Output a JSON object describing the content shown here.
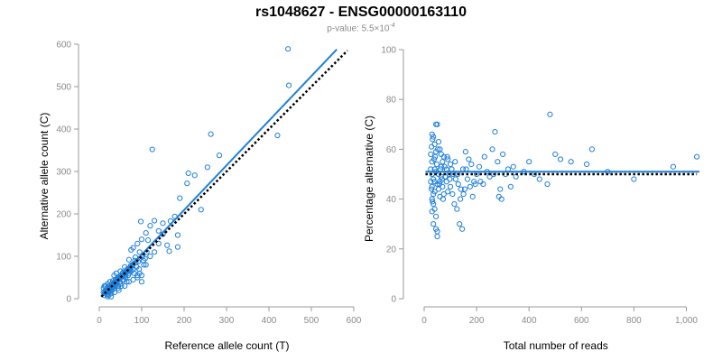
{
  "title": "rs1048627 - ENSG00000163110",
  "subtitle": {
    "prefix": "p-value: 5.5×10",
    "exponent": "-4"
  },
  "colors": {
    "points": "#1f7fd9",
    "fit_line": "#1f7fd9",
    "reference_line": "#000000",
    "axis": "#999999",
    "tick_text": "#8a8a8a"
  },
  "chart_data": [
    {
      "type": "scatter",
      "xlabel": "Reference allele count (T)",
      "ylabel": "Alternative allele count (C)",
      "xlim": [
        0,
        600
      ],
      "ylim": [
        0,
        600
      ],
      "xticks": [
        0,
        100,
        200,
        300,
        400,
        500,
        600
      ],
      "yticks": [
        0,
        100,
        200,
        300,
        400,
        500,
        600
      ],
      "xtick_labels": [
        "0",
        "100",
        "200",
        "300",
        "400",
        "500",
        "600"
      ],
      "ytick_labels": [
        "0",
        "100",
        "200",
        "300",
        "400",
        "500",
        "600"
      ],
      "grid": false,
      "points": [
        [
          445,
          589
        ],
        [
          447,
          503
        ],
        [
          125,
          352
        ],
        [
          263,
          388
        ],
        [
          420,
          385
        ],
        [
          210,
          296
        ],
        [
          225,
          291
        ],
        [
          207,
          272
        ],
        [
          255,
          310
        ],
        [
          240,
          210
        ],
        [
          283,
          338
        ],
        [
          190,
          237
        ],
        [
          178,
          194
        ],
        [
          168,
          183
        ],
        [
          150,
          152
        ],
        [
          185,
          150
        ],
        [
          160,
          126
        ],
        [
          165,
          112
        ],
        [
          185,
          122
        ],
        [
          98,
          182
        ],
        [
          110,
          155
        ],
        [
          120,
          172
        ],
        [
          130,
          184
        ],
        [
          140,
          160
        ],
        [
          100,
          140
        ],
        [
          115,
          138
        ],
        [
          90,
          130
        ],
        [
          150,
          178
        ],
        [
          75,
          115
        ],
        [
          85,
          98
        ],
        [
          95,
          110
        ],
        [
          70,
          92
        ],
        [
          80,
          120
        ],
        [
          105,
          80
        ],
        [
          95,
          60
        ],
        [
          100,
          40
        ],
        [
          90,
          50
        ],
        [
          80,
          70
        ],
        [
          70,
          60
        ],
        [
          60,
          75
        ],
        [
          60,
          55
        ],
        [
          55,
          45
        ],
        [
          50,
          65
        ],
        [
          45,
          50
        ],
        [
          40,
          40
        ],
        [
          35,
          55
        ],
        [
          30,
          35
        ],
        [
          25,
          30
        ],
        [
          20,
          25
        ],
        [
          15,
          20
        ],
        [
          10,
          15
        ],
        [
          12,
          30
        ],
        [
          18,
          10
        ],
        [
          22,
          15
        ],
        [
          28,
          22
        ],
        [
          32,
          28
        ],
        [
          38,
          30
        ],
        [
          42,
          35
        ],
        [
          48,
          40
        ],
        [
          52,
          30
        ],
        [
          58,
          45
        ],
        [
          62,
          50
        ],
        [
          65,
          40
        ],
        [
          68,
          55
        ],
        [
          72,
          68
        ],
        [
          78,
          80
        ],
        [
          82,
          60
        ],
        [
          88,
          75
        ],
        [
          92,
          88
        ],
        [
          96,
          95
        ],
        [
          102,
          100
        ],
        [
          108,
          95
        ],
        [
          112,
          110
        ],
        [
          30,
          20
        ],
        [
          25,
          40
        ],
        [
          35,
          25
        ],
        [
          40,
          60
        ],
        [
          45,
          30
        ],
        [
          50,
          35
        ],
        [
          55,
          60
        ],
        [
          15,
          30
        ],
        [
          20,
          35
        ],
        [
          10,
          25
        ],
        [
          12,
          8
        ],
        [
          14,
          18
        ],
        [
          16,
          12
        ],
        [
          18,
          22
        ],
        [
          22,
          28
        ],
        [
          26,
          18
        ],
        [
          28,
          12
        ],
        [
          32,
          42
        ],
        [
          36,
          34
        ],
        [
          44,
          45
        ],
        [
          46,
          20
        ],
        [
          54,
          52
        ],
        [
          64,
          62
        ],
        [
          74,
          78
        ],
        [
          84,
          90
        ],
        [
          94,
          70
        ],
        [
          104,
          90
        ],
        [
          60,
          30
        ],
        [
          70,
          40
        ],
        [
          80,
          45
        ],
        [
          90,
          55
        ],
        [
          100,
          55
        ],
        [
          110,
          80
        ],
        [
          120,
          100
        ],
        [
          130,
          110
        ],
        [
          140,
          130
        ],
        [
          22,
          8
        ],
        [
          24,
          20
        ],
        [
          26,
          26
        ],
        [
          30,
          30
        ],
        [
          34,
          38
        ],
        [
          38,
          44
        ],
        [
          42,
          48
        ],
        [
          48,
          52
        ],
        [
          56,
          62
        ],
        [
          66,
          70
        ],
        [
          76,
          65
        ],
        [
          86,
          85
        ],
        [
          20,
          5
        ],
        [
          28,
          5
        ],
        [
          36,
          15
        ],
        [
          44,
          25
        ],
        [
          13,
          14
        ],
        [
          17,
          17
        ],
        [
          19,
          19
        ],
        [
          21,
          21
        ],
        [
          23,
          23
        ],
        [
          27,
          27
        ],
        [
          29,
          29
        ],
        [
          31,
          31
        ],
        [
          33,
          33
        ],
        [
          37,
          37
        ],
        [
          39,
          39
        ],
        [
          41,
          41
        ],
        [
          43,
          43
        ],
        [
          47,
          47
        ],
        [
          49,
          49
        ],
        [
          51,
          51
        ],
        [
          53,
          53
        ],
        [
          57,
          57
        ],
        [
          59,
          59
        ],
        [
          61,
          61
        ],
        [
          63,
          63
        ],
        [
          67,
          67
        ],
        [
          69,
          69
        ],
        [
          71,
          71
        ],
        [
          73,
          73
        ],
        [
          77,
          77
        ],
        [
          79,
          79
        ]
      ],
      "series": [
        {
          "kind": "fit",
          "color": "#1f7fd9",
          "style": "solid",
          "x": [
            5,
            560
          ],
          "y": [
            4,
            588
          ]
        },
        {
          "kind": "reference",
          "color": "#000000",
          "style": "dotted",
          "x": [
            5,
            585
          ],
          "y": [
            5,
            585
          ]
        }
      ]
    },
    {
      "type": "scatter",
      "xlabel": "Total number of reads",
      "ylabel": "Percentage alternative (C)",
      "xlim": [
        0,
        1050
      ],
      "ylim": [
        0,
        100
      ],
      "xticks": [
        0,
        200,
        400,
        600,
        800,
        1000
      ],
      "yticks": [
        0,
        20,
        40,
        60,
        80,
        100
      ],
      "xtick_labels": [
        "0",
        "200",
        "400",
        "600",
        "800",
        "1,000"
      ],
      "ytick_labels": [
        "0",
        "20",
        "40",
        "60",
        "80",
        "100"
      ],
      "grid": false,
      "points": [
        [
          480,
          74
        ],
        [
          270,
          67
        ],
        [
          50,
          70
        ],
        [
          45,
          70
        ],
        [
          30,
          66
        ],
        [
          35,
          65
        ],
        [
          55,
          63
        ],
        [
          40,
          62
        ],
        [
          60,
          60
        ],
        [
          65,
          58
        ],
        [
          45,
          59
        ],
        [
          70,
          55
        ],
        [
          75,
          57
        ],
        [
          85,
          52
        ],
        [
          90,
          56
        ],
        [
          100,
          54
        ],
        [
          110,
          50
        ],
        [
          120,
          48
        ],
        [
          130,
          46
        ],
        [
          140,
          44
        ],
        [
          150,
          42
        ],
        [
          160,
          52
        ],
        [
          170,
          56
        ],
        [
          180,
          54
        ],
        [
          200,
          50
        ],
        [
          210,
          53
        ],
        [
          230,
          57
        ],
        [
          250,
          49
        ],
        [
          260,
          60
        ],
        [
          280,
          55
        ],
        [
          290,
          44
        ],
        [
          300,
          58
        ],
        [
          310,
          50
        ],
        [
          320,
          52
        ],
        [
          330,
          45
        ],
        [
          340,
          53
        ],
        [
          350,
          49
        ],
        [
          380,
          51
        ],
        [
          400,
          55
        ],
        [
          420,
          50
        ],
        [
          440,
          48
        ],
        [
          470,
          46
        ],
        [
          500,
          58
        ],
        [
          520,
          56
        ],
        [
          560,
          55
        ],
        [
          620,
          54
        ],
        [
          640,
          60
        ],
        [
          700,
          51
        ],
        [
          800,
          48
        ],
        [
          950,
          53
        ],
        [
          1040,
          57
        ],
        [
          30,
          55
        ],
        [
          30,
          50
        ],
        [
          30,
          45
        ],
        [
          30,
          40
        ],
        [
          30,
          35
        ],
        [
          35,
          48
        ],
        [
          35,
          42
        ],
        [
          35,
          38
        ],
        [
          35,
          30
        ],
        [
          40,
          52
        ],
        [
          40,
          47
        ],
        [
          40,
          43
        ],
        [
          40,
          36
        ],
        [
          45,
          28
        ],
        [
          45,
          33
        ],
        [
          45,
          51
        ],
        [
          50,
          25
        ],
        [
          50,
          27
        ],
        [
          50,
          46
        ],
        [
          55,
          44
        ],
        [
          55,
          50
        ],
        [
          60,
          41
        ],
        [
          60,
          47
        ],
        [
          65,
          49
        ],
        [
          65,
          53
        ],
        [
          70,
          45
        ],
        [
          75,
          42
        ],
        [
          80,
          49
        ],
        [
          85,
          47
        ],
        [
          90,
          43
        ],
        [
          95,
          50
        ],
        [
          100,
          45
        ],
        [
          105,
          52
        ],
        [
          115,
          38
        ],
        [
          125,
          36
        ],
        [
          135,
          30
        ],
        [
          145,
          28
        ],
        [
          155,
          44
        ],
        [
          165,
          48
        ],
        [
          175,
          45
        ],
        [
          185,
          41
        ],
        [
          190,
          47
        ],
        [
          195,
          46
        ],
        [
          215,
          47
        ],
        [
          225,
          46
        ],
        [
          240,
          51
        ],
        [
          265,
          50
        ],
        [
          285,
          41
        ],
        [
          295,
          40
        ],
        [
          25,
          52
        ],
        [
          25,
          58
        ],
        [
          25,
          47
        ],
        [
          28,
          61
        ],
        [
          28,
          44
        ],
        [
          32,
          64
        ],
        [
          32,
          39
        ],
        [
          38,
          56
        ],
        [
          42,
          57
        ],
        [
          48,
          54
        ],
        [
          52,
          60
        ],
        [
          58,
          46
        ],
        [
          62,
          52
        ],
        [
          68,
          48
        ],
        [
          72,
          40
        ],
        [
          78,
          53
        ],
        [
          88,
          57
        ],
        [
          98,
          48
        ],
        [
          108,
          42
        ],
        [
          118,
          55
        ],
        [
          128,
          50
        ],
        [
          138,
          40
        ],
        [
          148,
          52
        ],
        [
          158,
          59
        ]
      ],
      "series": [
        {
          "kind": "fit",
          "color": "#1f7fd9",
          "style": "solid",
          "x": [
            5,
            1050
          ],
          "y": [
            51,
            51
          ]
        },
        {
          "kind": "reference",
          "color": "#000000",
          "style": "dotted",
          "x": [
            5,
            1040
          ],
          "y": [
            50,
            50
          ]
        }
      ]
    }
  ]
}
